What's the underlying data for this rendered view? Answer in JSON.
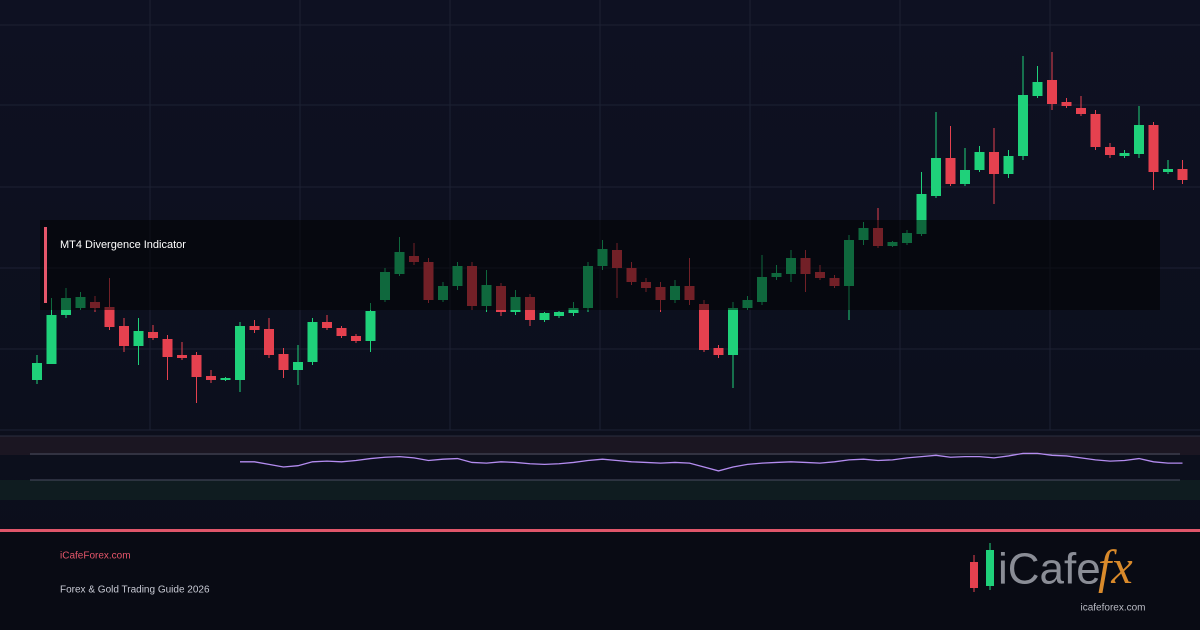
{
  "chart_data": {
    "type": "candlestick",
    "title": "MT4 Divergence Indicator",
    "up_color": "#1fd17a",
    "down_color": "#e5414f",
    "ylim": [
      0,
      430
    ],
    "open": [
      50,
      66,
      115,
      122,
      128,
      123,
      104,
      84,
      98,
      91,
      75,
      75,
      54,
      50,
      50,
      104,
      101,
      76,
      60,
      68,
      108,
      102,
      94,
      89,
      130,
      156,
      174,
      168,
      130,
      144,
      164,
      124,
      144,
      118,
      133,
      110,
      114,
      117,
      122,
      164,
      180,
      162,
      148,
      143,
      130,
      144,
      126,
      82,
      75,
      122,
      128,
      153,
      156,
      172,
      158,
      152,
      144,
      190,
      202,
      184,
      187,
      196,
      234,
      272,
      246,
      260,
      278,
      256,
      274,
      334,
      350,
      328,
      322,
      316,
      283,
      274,
      276,
      305,
      258,
      261
    ],
    "high": [
      75,
      132,
      142,
      138,
      134,
      152,
      112,
      112,
      105,
      95,
      88,
      78,
      60,
      53,
      108,
      110,
      112,
      82,
      85,
      112,
      115,
      104,
      96,
      127,
      162,
      193,
      187,
      172,
      148,
      168,
      168,
      160,
      147,
      140,
      136,
      118,
      119,
      128,
      168,
      190,
      187,
      168,
      152,
      148,
      150,
      172,
      130,
      85,
      128,
      134,
      175,
      165,
      180,
      180,
      165,
      155,
      195,
      208,
      222,
      189,
      200,
      258,
      318,
      304,
      282,
      284,
      302,
      280,
      374,
      364,
      378,
      332,
      334,
      320,
      287,
      280,
      324,
      308,
      270,
      270
    ],
    "low": [
      46,
      66,
      112,
      120,
      118,
      100,
      78,
      65,
      90,
      50,
      70,
      27,
      47,
      49,
      38,
      97,
      72,
      52,
      45,
      65,
      100,
      92,
      87,
      78,
      128,
      154,
      165,
      127,
      128,
      140,
      120,
      118,
      114,
      115,
      104,
      108,
      112,
      114,
      118,
      160,
      132,
      145,
      138,
      118,
      127,
      125,
      78,
      72,
      42,
      120,
      125,
      150,
      148,
      138,
      150,
      142,
      110,
      185,
      182,
      183,
      185,
      194,
      232,
      244,
      244,
      258,
      226,
      252,
      270,
      332,
      320,
      322,
      314,
      280,
      272,
      272,
      272,
      240,
      256,
      246
    ],
    "close": [
      67,
      115,
      132,
      133,
      122,
      103,
      84,
      99,
      92,
      73,
      72,
      53,
      50,
      52,
      104,
      100,
      75,
      60,
      68,
      108,
      102,
      94,
      89,
      119,
      158,
      178,
      168,
      130,
      144,
      164,
      124,
      145,
      118,
      133,
      110,
      117,
      118,
      122,
      164,
      181,
      162,
      148,
      142,
      130,
      144,
      130,
      80,
      75,
      122,
      130,
      153,
      157,
      172,
      156,
      152,
      144,
      190,
      202,
      184,
      188,
      197,
      236,
      272,
      246,
      260,
      278,
      256,
      274,
      335,
      348,
      326,
      324,
      316,
      283,
      275,
      277,
      305,
      258,
      261,
      250
    ],
    "indicator": {
      "color": "#b48cf0",
      "ylim": [
        30,
        70
      ],
      "levels": [
        70,
        30
      ],
      "values": [
        null,
        null,
        null,
        null,
        null,
        null,
        null,
        null,
        null,
        null,
        null,
        null,
        null,
        null,
        58,
        58,
        54,
        50,
        52,
        58,
        59,
        58,
        60,
        63,
        65,
        66,
        64,
        60,
        62,
        63,
        57,
        56,
        58,
        57,
        55,
        54,
        55,
        57,
        60,
        62,
        60,
        58,
        57,
        56,
        57,
        56,
        50,
        44,
        50,
        54,
        56,
        57,
        58,
        57,
        56,
        58,
        61,
        62,
        60,
        61,
        64,
        66,
        68,
        65,
        66,
        66,
        64,
        67,
        71,
        71,
        68,
        67,
        64,
        61,
        59,
        60,
        63,
        58,
        56,
        56
      ]
    }
  },
  "footer": {
    "site": "iCafeForex.com",
    "subtitle": "Forex & Gold Trading Guide 2026"
  },
  "logo": {
    "brand_a": "iCafe",
    "brand_b": "fx",
    "url": "icafeforex.com"
  }
}
